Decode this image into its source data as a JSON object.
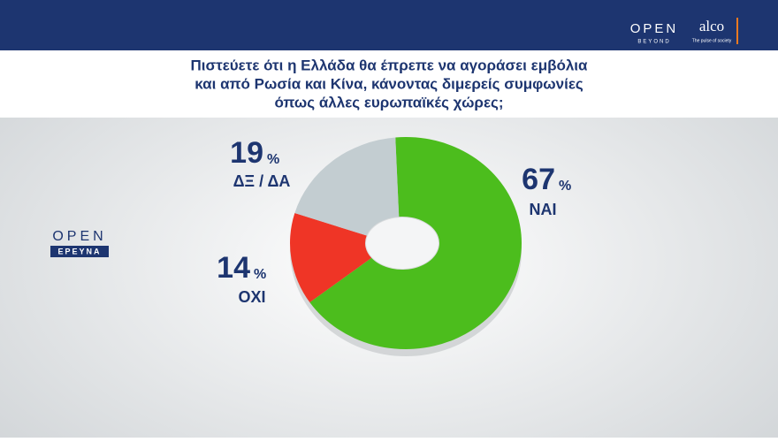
{
  "chart_data": {
    "type": "donut",
    "title": [
      "Πιστεύετε ότι η Ελλάδα  θα έπρεπε να αγοράσει εμβόλια",
      "και από Ρωσία και Κίνα, κάνοντας διμερείς συμφωνίες",
      "όπως άλλες ευρωπαϊκές χώρες;"
    ],
    "categories": [
      "ΝΑΙ",
      "ΟΧΙ",
      "ΔΞ / ΔΑ"
    ],
    "values": [
      67,
      14,
      19
    ],
    "unit": "%",
    "colors": [
      "#4cbd1d",
      "#ef3526",
      "#c3cdd1"
    ]
  },
  "branding": {
    "header_logo": "OPEN",
    "header_logo_sub": "BEYOND",
    "partner": "alco",
    "partner_sub": "The pulse of society",
    "side_logo": "OPEN",
    "side_logo_sub": "ΕΡΕΥΝΑ"
  }
}
